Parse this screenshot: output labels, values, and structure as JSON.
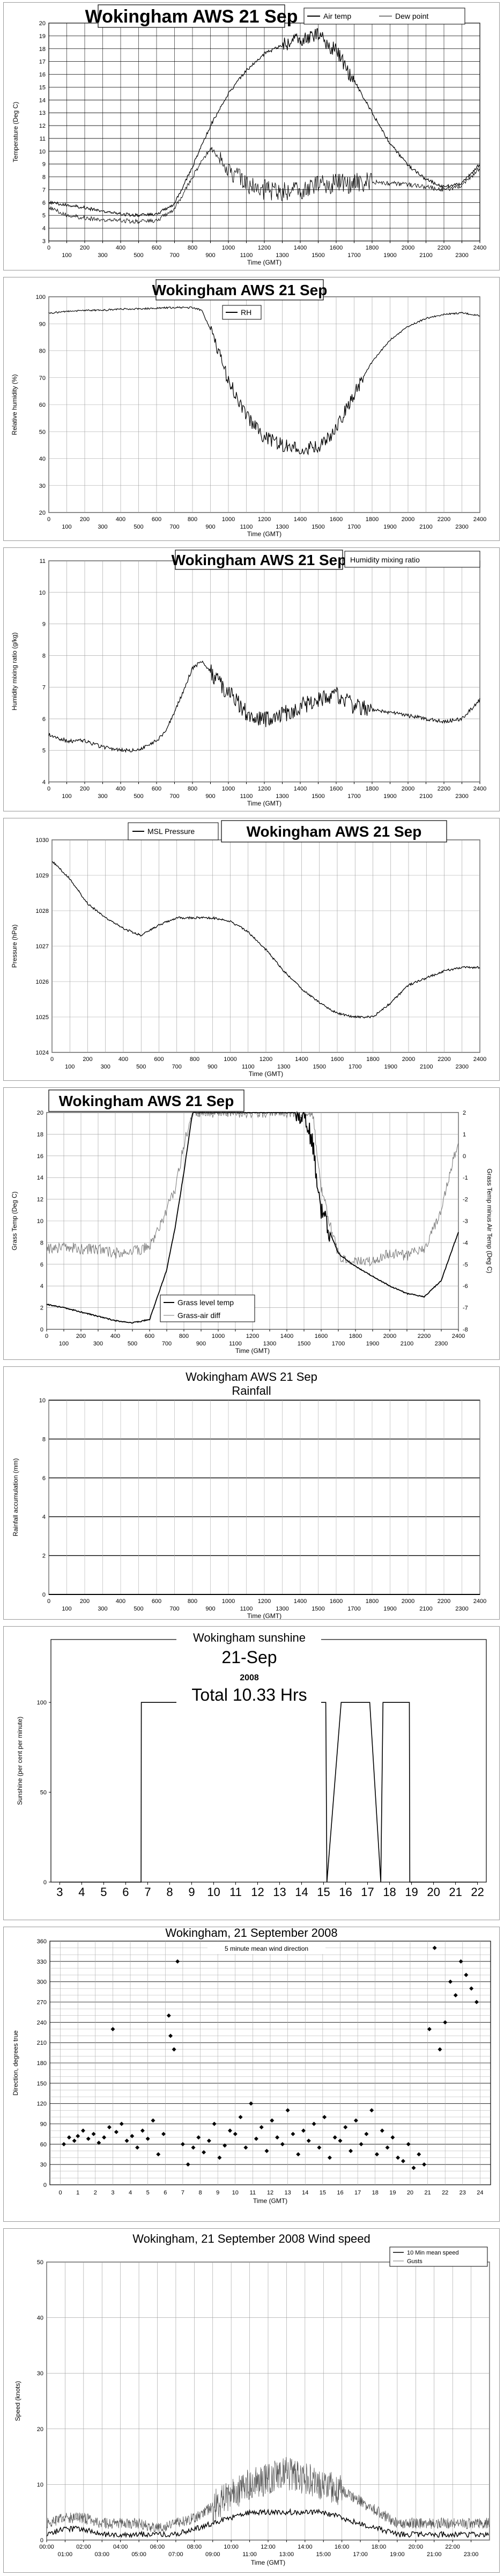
{
  "charts": [
    {
      "id": "temp",
      "title": "Wokingham AWS 21 Sep",
      "legend": [
        "Air temp",
        "Dew point"
      ],
      "ylabel": "Temperature (Deg C)",
      "xlabel": "Time (GMT)",
      "yticks": [
        "3",
        "4",
        "5",
        "6",
        "7",
        "8",
        "9",
        "10",
        "11",
        "12",
        "13",
        "14",
        "15",
        "16",
        "17",
        "18",
        "19",
        "20"
      ],
      "xticks_top": [
        "0",
        "200",
        "400",
        "600",
        "800",
        "1000",
        "1200",
        "1400",
        "1600",
        "1800",
        "2000",
        "2200",
        "2400"
      ],
      "xticks_bottom": [
        "100",
        "300",
        "500",
        "700",
        "900",
        "1100",
        "1300",
        "1500",
        "1700",
        "1900",
        "2100",
        "2300"
      ]
    },
    {
      "id": "rh",
      "title": "Wokingham AWS 21 Sep",
      "legend": [
        "RH"
      ],
      "ylabel": "Relative humidity (%)",
      "xlabel": "Time (GMT)",
      "yticks": [
        "20",
        "30",
        "40",
        "50",
        "60",
        "70",
        "80",
        "90",
        "100"
      ],
      "xticks": [
        "0",
        "100",
        "200",
        "300",
        "400",
        "500",
        "600",
        "700",
        "800",
        "900",
        "1000",
        "1100",
        "1200",
        "1300",
        "1400",
        "1500",
        "1600",
        "1700",
        "1800",
        "1900",
        "2000",
        "2100",
        "2200",
        "2300",
        "2400"
      ]
    },
    {
      "id": "hmr",
      "title": "Wokingham AWS 21 Sep",
      "legend": [
        "Humidity mixing ratio"
      ],
      "ylabel": "Humidity mixing ratio (g/kg)",
      "xlabel": "Time (GMT)",
      "yticks": [
        "4",
        "5",
        "6",
        "7",
        "8",
        "9",
        "10",
        "11"
      ],
      "xticks_top": [
        "0",
        "200",
        "400",
        "600",
        "800",
        "1000",
        "1200",
        "1400",
        "1600",
        "1800",
        "2000",
        "2200",
        "2400"
      ],
      "xticks_bottom": [
        "100",
        "300",
        "500",
        "700",
        "900",
        "1100",
        "1300",
        "1500",
        "1700",
        "1900",
        "2100",
        "2300"
      ]
    },
    {
      "id": "msl",
      "title": "Wokingham AWS 21 Sep",
      "legend": [
        "MSL Pressure"
      ],
      "ylabel": "Pressure (hPa)",
      "xlabel": "Time (GMT)",
      "yticks": [
        "1024",
        "1025",
        "1026",
        "1027",
        "1028",
        "1029",
        "1030"
      ],
      "xticks": [
        "0",
        "100",
        "200",
        "300",
        "400",
        "500",
        "600",
        "700",
        "800",
        "900",
        "1000",
        "1100",
        "1200",
        "1300",
        "1400",
        "1500",
        "1600",
        "1700",
        "1800",
        "1900",
        "2000",
        "2100",
        "2200",
        "2300",
        "2400"
      ]
    },
    {
      "id": "grass",
      "title": "Wokingham AWS 21 Sep",
      "legend": [
        "Grass level temp",
        "Grass-air diff"
      ],
      "ylabel": "Grass Temp (Deg C)",
      "ylabel_right": "Grass Temp minus Air Temp (Deg C)",
      "xlabel": "Time (GMT)",
      "yticks": [
        "0",
        "2",
        "4",
        "6",
        "8",
        "10",
        "12",
        "14",
        "16",
        "18",
        "20"
      ],
      "yticks_right": [
        "-8",
        "-7",
        "-6",
        "-5",
        "-4",
        "-3",
        "-2",
        "-1",
        "0",
        "1",
        "2"
      ],
      "xticks_top": [
        "0",
        "200",
        "400",
        "600",
        "800",
        "1000",
        "1200",
        "1400",
        "1600",
        "1800",
        "2000",
        "2200",
        "2400"
      ],
      "xticks_bottom": [
        "100",
        "300",
        "500",
        "700",
        "900",
        "1100",
        "1300",
        "1500",
        "1700",
        "1900",
        "2100",
        "2300"
      ]
    },
    {
      "id": "rain",
      "title": "Wokingham AWS 21 Sep",
      "subtitle": "Rainfall",
      "ylabel": "Rainfall accumulation (mm)",
      "xlabel": "Time (GMT)",
      "yticks": [
        "0",
        "2",
        "4",
        "6",
        "8",
        "10"
      ],
      "xticks": [
        "0",
        "100",
        "200",
        "300",
        "400",
        "500",
        "600",
        "700",
        "800",
        "900",
        "1000",
        "1100",
        "1200",
        "1300",
        "1400",
        "1500",
        "1600",
        "1700",
        "1800",
        "1900",
        "2000",
        "2100",
        "2200",
        "2300",
        "2400"
      ]
    },
    {
      "id": "sun",
      "title": "Wokingham sunshine",
      "date": "21-Sep",
      "year": "2008",
      "total": "Total 10.33 Hrs",
      "ylabel": "Sunshine (per cent per minute)",
      "yticks": [
        "0",
        "50",
        "100"
      ],
      "xticks": [
        "3",
        "4",
        "5",
        "6",
        "7",
        "8",
        "9",
        "10",
        "11",
        "12",
        "13",
        "14",
        "15",
        "16",
        "17",
        "18",
        "19",
        "20",
        "21",
        "22"
      ]
    },
    {
      "id": "dir",
      "title": "Wokingham,  21 September 2008",
      "legend": [
        "5 minute mean wind direction"
      ],
      "ylabel": "Direction, degrees true",
      "xlabel": "Time (GMT)",
      "yticks": [
        "0",
        "30",
        "60",
        "90",
        "120",
        "150",
        "180",
        "210",
        "240",
        "270",
        "300",
        "330",
        "360"
      ],
      "xticks": [
        "0",
        "1",
        "2",
        "3",
        "4",
        "5",
        "6",
        "7",
        "8",
        "9",
        "10",
        "11",
        "12",
        "13",
        "14",
        "15",
        "16",
        "17",
        "18",
        "19",
        "20",
        "21",
        "22",
        "23",
        "24"
      ]
    },
    {
      "id": "speed",
      "title": "Wokingham,  21 September 2008     Wind speed",
      "legend": [
        "10 Min mean speed",
        "Gusts"
      ],
      "ylabel": "Speed (knots)",
      "xlabel": "Time (GMT)",
      "yticks": [
        "0",
        "10",
        "20",
        "30",
        "40",
        "50"
      ],
      "xticks_top": [
        "00:00",
        "02:00",
        "04:00",
        "06:00",
        "08:00",
        "10:00",
        "12:00",
        "14:00",
        "16:00",
        "18:00",
        "20:00",
        "22:00"
      ],
      "xticks_bottom": [
        "01:00",
        "03:00",
        "05:00",
        "07:00",
        "09:00",
        "11:00",
        "13:00",
        "15:00",
        "17:00",
        "19:00",
        "21:00",
        "23:00"
      ]
    }
  ],
  "chart_data": [
    {
      "type": "line",
      "x": [
        0,
        100,
        200,
        300,
        400,
        500,
        600,
        700,
        800,
        900,
        1000,
        1100,
        1200,
        1300,
        1400,
        1500,
        1600,
        1700,
        1800,
        1900,
        2000,
        2100,
        2200,
        2300,
        2400
      ],
      "series": [
        {
          "name": "Air temp",
          "values": [
            6.0,
            5.8,
            5.6,
            5.3,
            5.1,
            5.0,
            5.1,
            5.9,
            8.8,
            12.0,
            14.5,
            16.3,
            17.6,
            18.3,
            18.8,
            19.0,
            17.8,
            15.5,
            13.0,
            10.6,
            8.9,
            7.8,
            7.2,
            7.5,
            9.0
          ]
        },
        {
          "name": "Dew point",
          "values": [
            5.6,
            5.0,
            4.8,
            4.6,
            4.6,
            4.5,
            4.6,
            5.5,
            8.0,
            10.3,
            8.5,
            7.4,
            7.0,
            6.9,
            7.0,
            7.3,
            7.5,
            7.5,
            7.6,
            7.5,
            7.4,
            7.2,
            7.0,
            7.3,
            8.7
          ]
        }
      ],
      "ylim": [
        3,
        20
      ],
      "xlim": [
        0,
        2400
      ]
    },
    {
      "type": "line",
      "x": [
        0,
        100,
        200,
        300,
        400,
        500,
        600,
        700,
        800,
        850,
        900,
        1000,
        1100,
        1200,
        1300,
        1400,
        1500,
        1600,
        1700,
        1800,
        1900,
        2000,
        2100,
        2200,
        2300,
        2400
      ],
      "series": [
        {
          "name": "RH",
          "values": [
            94,
            94.5,
            95,
            95,
            95.5,
            95.5,
            95.8,
            96,
            96,
            95,
            88,
            69,
            56,
            48,
            45,
            44,
            44,
            51,
            64,
            76,
            84,
            89,
            92,
            93.5,
            94,
            93
          ]
        }
      ],
      "ylim": [
        20,
        100
      ],
      "xlim": [
        0,
        2400
      ]
    },
    {
      "type": "line",
      "x": [
        0,
        100,
        200,
        300,
        400,
        500,
        600,
        650,
        700,
        800,
        850,
        900,
        1000,
        1100,
        1200,
        1300,
        1400,
        1500,
        1600,
        1700,
        1800,
        1900,
        2000,
        2100,
        2200,
        2300,
        2400
      ],
      "series": [
        {
          "name": "Humidity mixing ratio",
          "values": [
            5.5,
            5.3,
            5.3,
            5.1,
            5.0,
            5.0,
            5.3,
            5.6,
            6.2,
            7.6,
            7.8,
            7.5,
            6.8,
            6.2,
            6.0,
            6.1,
            6.4,
            6.6,
            6.8,
            6.4,
            6.3,
            6.2,
            6.1,
            6.0,
            5.9,
            6.0,
            6.6
          ]
        }
      ],
      "ylim": [
        4,
        11
      ],
      "xlim": [
        0,
        2400
      ]
    },
    {
      "type": "line",
      "x": [
        0,
        100,
        200,
        300,
        400,
        500,
        600,
        700,
        800,
        900,
        1000,
        1100,
        1200,
        1300,
        1400,
        1500,
        1600,
        1700,
        1800,
        1900,
        2000,
        2100,
        2200,
        2300,
        2400
      ],
      "series": [
        {
          "name": "MSL Pressure",
          "values": [
            1029.4,
            1028.9,
            1028.2,
            1027.8,
            1027.5,
            1027.3,
            1027.6,
            1027.8,
            1027.8,
            1027.8,
            1027.7,
            1027.4,
            1026.9,
            1026.3,
            1025.8,
            1025.4,
            1025.1,
            1025.0,
            1025.0,
            1025.4,
            1025.9,
            1026.1,
            1026.3,
            1026.4,
            1026.4
          ]
        }
      ],
      "ylim": [
        1024,
        1030
      ],
      "xlim": [
        0,
        2400
      ]
    },
    {
      "type": "line",
      "x": [
        0,
        100,
        200,
        300,
        400,
        500,
        600,
        700,
        750,
        800,
        850,
        900,
        950,
        1000,
        1100,
        1200,
        1300,
        1400,
        1500,
        1550,
        1600,
        1700,
        1800,
        1900,
        2000,
        2100,
        2200,
        2300,
        2400
      ],
      "series": [
        {
          "name": "Grass level temp",
          "values": [
            2.3,
            2.0,
            1.6,
            1.2,
            0.8,
            0.6,
            0.9,
            5.5,
            9.5,
            14.5,
            20,
            20,
            20,
            20,
            20,
            20,
            20,
            20,
            20,
            17.0,
            11.0,
            7.0,
            5.8,
            4.9,
            4.0,
            3.3,
            3.0,
            4.5,
            9.0
          ]
        },
        {
          "name": "Grass-air diff",
          "values": [
            -4.3,
            -4.2,
            -4.3,
            -4.3,
            -4.5,
            -4.4,
            -4.2,
            -2.5,
            -1.5,
            0.5,
            2,
            2,
            2,
            2,
            2,
            2,
            2,
            2,
            2,
            2,
            -1.5,
            -4.6,
            -4.9,
            -4.8,
            -4.5,
            -4.6,
            -4.3,
            -2.5,
            0.8
          ]
        }
      ],
      "ylim": [
        0,
        20
      ],
      "y2lim": [
        -8,
        2
      ],
      "xlim": [
        0,
        2400
      ]
    },
    {
      "type": "line",
      "x": [
        0,
        2400
      ],
      "series": [
        {
          "name": "Rainfall",
          "values": [
            0,
            0
          ]
        }
      ],
      "ylim": [
        0,
        10
      ],
      "xlim": [
        0,
        2400
      ]
    },
    {
      "type": "area",
      "x": [
        3,
        6.7,
        6.71,
        13.7,
        13.72,
        15.1,
        15.15,
        15.8,
        15.9,
        17.0,
        17.1,
        17.6,
        17.7,
        18.9,
        18.92,
        22
      ],
      "series": [
        {
          "name": "Sunshine",
          "values": [
            0,
            0,
            100,
            100,
            100,
            100,
            0,
            100,
            100,
            100,
            100,
            0,
            100,
            100,
            0,
            0
          ]
        }
      ],
      "ylim": [
        0,
        100
      ],
      "xlim": [
        3,
        22
      ]
    },
    {
      "type": "scatter",
      "x": [
        0.2,
        0.5,
        0.8,
        1.0,
        1.3,
        1.6,
        1.9,
        2.2,
        2.5,
        2.8,
        3.0,
        3.2,
        3.5,
        3.8,
        4.1,
        4.4,
        4.7,
        5.0,
        5.3,
        5.6,
        5.9,
        6.2,
        6.3,
        6.5,
        6.7,
        7.0,
        7.3,
        7.6,
        7.9,
        8.2,
        8.5,
        8.8,
        9.1,
        9.4,
        9.7,
        10.0,
        10.3,
        10.6,
        10.9,
        11.2,
        11.5,
        11.8,
        12.1,
        12.4,
        12.7,
        13.0,
        13.3,
        13.6,
        13.9,
        14.2,
        14.5,
        14.8,
        15.1,
        15.4,
        15.7,
        16.0,
        16.3,
        16.6,
        16.9,
        17.2,
        17.5,
        17.8,
        18.1,
        18.4,
        18.7,
        19.0,
        19.3,
        19.6,
        19.9,
        20.2,
        20.5,
        20.8,
        21.1,
        21.4,
        21.7,
        22.0,
        22.3,
        22.6,
        22.9,
        23.2,
        23.5,
        23.8
      ],
      "series": [
        {
          "name": "5 minute mean wind direction",
          "values": [
            60,
            70,
            65,
            72,
            80,
            68,
            75,
            62,
            70,
            85,
            230,
            78,
            90,
            65,
            72,
            55,
            80,
            68,
            95,
            45,
            75,
            250,
            220,
            200,
            330,
            60,
            30,
            55,
            70,
            48,
            65,
            90,
            40,
            58,
            80,
            75,
            100,
            55,
            120,
            68,
            85,
            50,
            95,
            70,
            60,
            110,
            75,
            45,
            80,
            65,
            90,
            55,
            100,
            40,
            70,
            65,
            85,
            50,
            95,
            60,
            75,
            110,
            45,
            80,
            55,
            70,
            40,
            35,
            60,
            25,
            45,
            30,
            230,
            350,
            200,
            240,
            300,
            280,
            330,
            310,
            290,
            270
          ]
        }
      ],
      "ylim": [
        0,
        360
      ],
      "xlim": [
        0,
        24
      ]
    },
    {
      "type": "line",
      "x": [
        0,
        1,
        2,
        3,
        4,
        5,
        6,
        7,
        8,
        9,
        10,
        11,
        12,
        13,
        14,
        15,
        16,
        17,
        18,
        19,
        20,
        21,
        22,
        23,
        24
      ],
      "series": [
        {
          "name": "10 Min mean speed",
          "values": [
            1,
            2,
            2,
            1,
            1,
            1,
            1,
            1,
            2,
            3,
            4,
            5,
            5,
            5,
            5,
            5,
            4,
            3,
            2,
            1,
            1,
            1,
            1,
            1,
            1
          ]
        },
        {
          "name": "Gusts",
          "values": [
            3,
            4,
            4,
            3,
            3,
            3,
            2,
            3,
            4,
            6,
            8,
            10,
            11,
            12,
            11,
            10,
            9,
            7,
            5,
            3,
            3,
            3,
            3,
            3,
            3
          ]
        }
      ],
      "ylim": [
        0,
        50
      ],
      "xlim": [
        0,
        24
      ]
    }
  ]
}
